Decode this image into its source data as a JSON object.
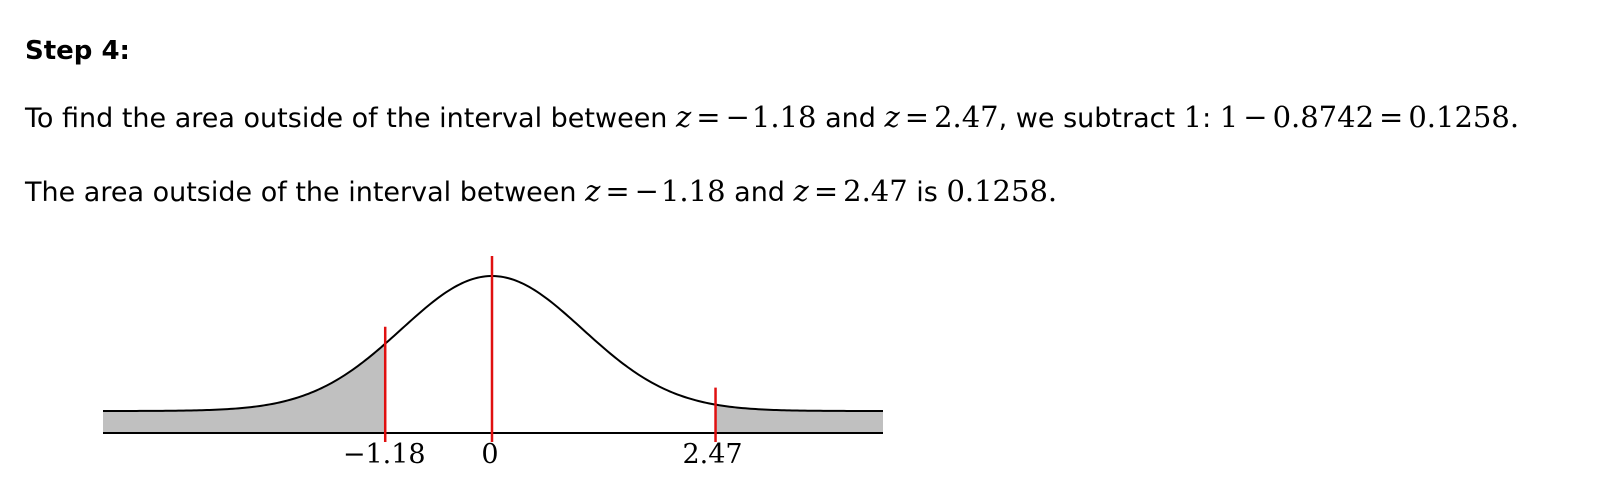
{
  "step": {
    "heading": "Step 4:"
  },
  "sentence1": {
    "t1": "To find the area outside of the interval between ",
    "z_var": "z",
    "eq": "=",
    "neg": "−",
    "z_low_abs": "1.18",
    "t2": " and ",
    "z_high": "2.47",
    "t3": ", we subtract ",
    "one": "1",
    "colon": ": ",
    "minus": "−",
    "area_between": "0.8742",
    "result": "0.1258",
    "period": "."
  },
  "sentence2": {
    "t1": "The area outside of the interval between ",
    "z_var": "z",
    "eq": "=",
    "neg": "−",
    "z_low_abs": "1.18",
    "t2": " and ",
    "z_high": "2.47",
    "t3": " is ",
    "result": "0.1258",
    "period": "."
  },
  "graph": {
    "curve_color": "#000000",
    "shade_color": "#c0c0c0",
    "marker_color": "#e01010",
    "z_left": -1.18,
    "z_right": 2.47,
    "z_center": 0,
    "x_range": [
      -3.6,
      3.6
    ],
    "tick_labels": {
      "left": "−1.18",
      "center": "0",
      "right": "2.47"
    }
  }
}
